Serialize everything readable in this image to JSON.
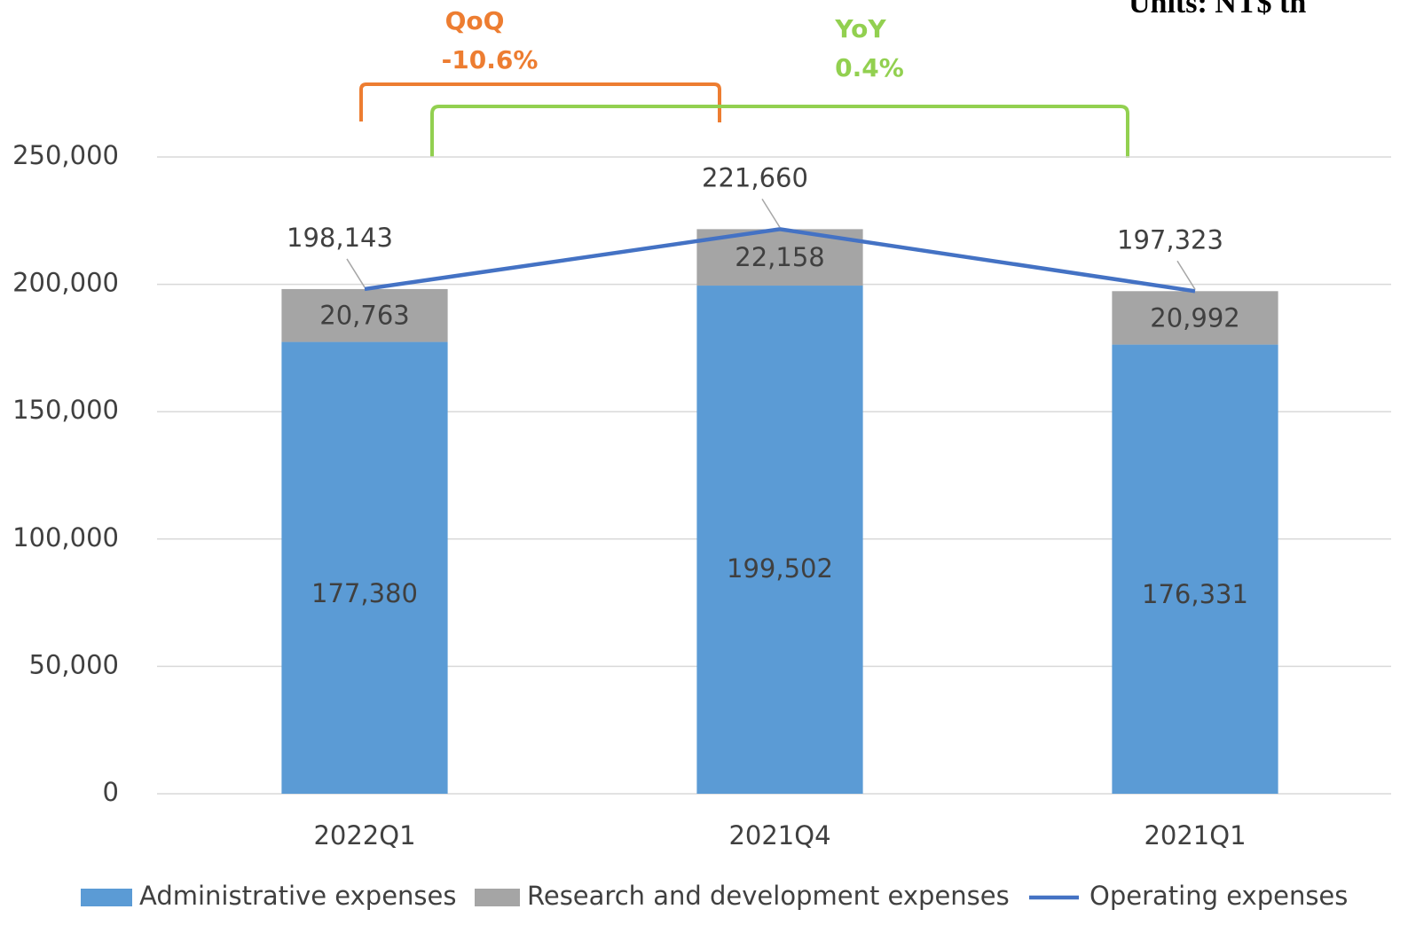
{
  "chart_data": {
    "type": "bar",
    "stacked": true,
    "units": "Units: NT$ th",
    "annotations": [
      {
        "label": "QoQ",
        "text": "-10.6%",
        "color": "#ED7D31"
      },
      {
        "label": "YoY",
        "text": "0.4%",
        "color": "#92D050"
      }
    ],
    "categories": [
      "2022Q1",
      "2021Q4",
      "2021Q1"
    ],
    "series": [
      {
        "name": "Administrative expenses",
        "type": "bar",
        "color": "#5B9BD5",
        "values": [
          177380,
          199502,
          176331
        ],
        "value_labels": [
          "177,380",
          "199,502",
          "176,331"
        ]
      },
      {
        "name": "Research and development expenses",
        "type": "bar",
        "color": "#A5A5A5",
        "values": [
          20763,
          22158,
          20992
        ],
        "value_labels": [
          "20,763",
          "22,158",
          "20,992"
        ]
      },
      {
        "name": "Operating expenses",
        "type": "line",
        "color": "#4472C4",
        "values": [
          198143,
          221660,
          197323
        ],
        "value_labels": [
          "198,143",
          "221,660",
          "197,323"
        ]
      }
    ],
    "ylim": [
      0,
      250000
    ],
    "yticks": [
      0,
      {
        "value": 50000,
        "label": "50,000"
      },
      {
        "value": 100000,
        "label": "100,000"
      },
      {
        "value": 150000,
        "label": "150,000"
      },
      {
        "value": 200000,
        "label": "200,000"
      },
      {
        "value": 250000,
        "label": "250,000"
      }
    ],
    "grid": true,
    "legend": "bottom"
  }
}
